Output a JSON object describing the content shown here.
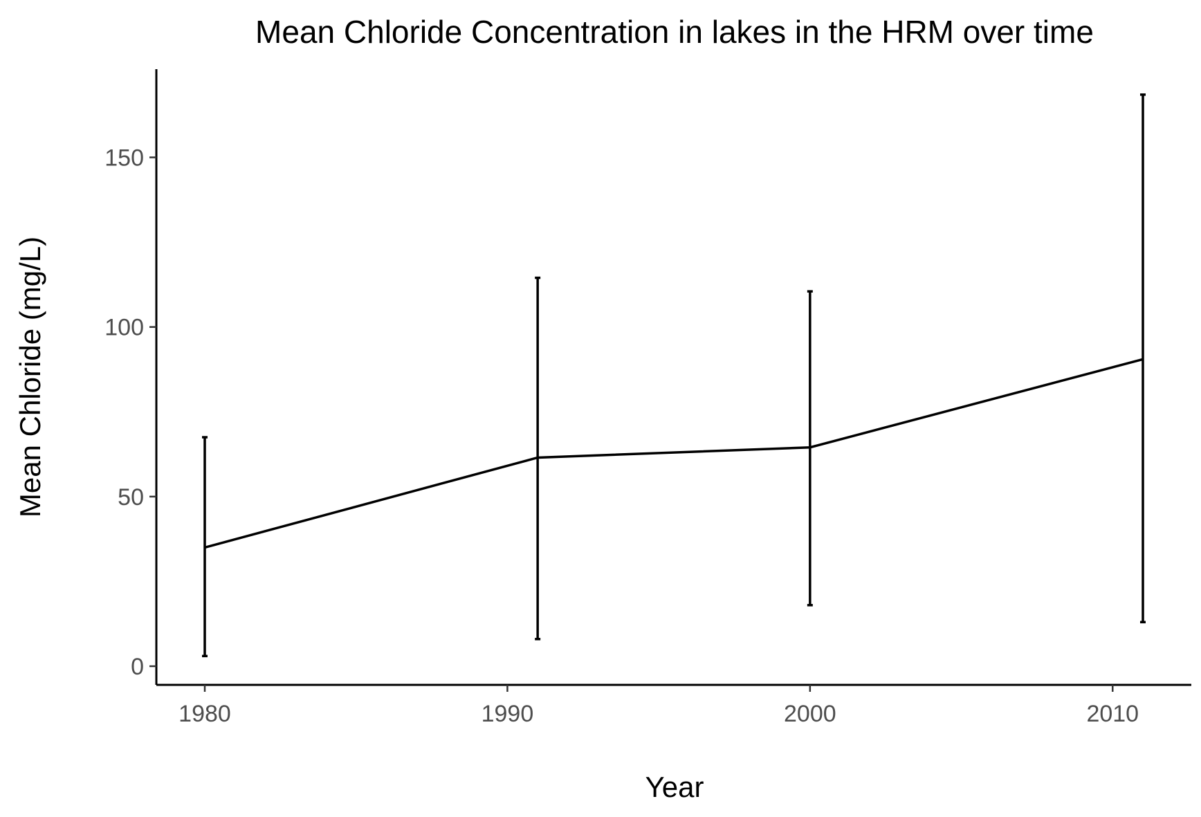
{
  "chart_data": {
    "type": "line",
    "title": "Mean Chloride Concentration in lakes in the HRM over time",
    "xlabel": "Year",
    "ylabel": "Mean Chloride (mg/L)",
    "xlim": [
      1978.4,
      2012.6
    ],
    "ylim": [
      -5.5,
      176
    ],
    "x_ticks": [
      1980,
      1990,
      2000,
      2010
    ],
    "y_ticks": [
      0,
      50,
      100,
      150
    ],
    "grid": false,
    "legend": "none",
    "series": [
      {
        "x": [
          1980,
          1991,
          2000,
          2011
        ],
        "values": [
          35,
          61.5,
          64.5,
          90.5
        ],
        "error_low": [
          3,
          8,
          18,
          13
        ],
        "error_high": [
          67.5,
          114.5,
          110.5,
          168.5
        ]
      }
    ],
    "colors": {
      "line": "#000000",
      "tick_text": "#4d4d4d"
    }
  }
}
